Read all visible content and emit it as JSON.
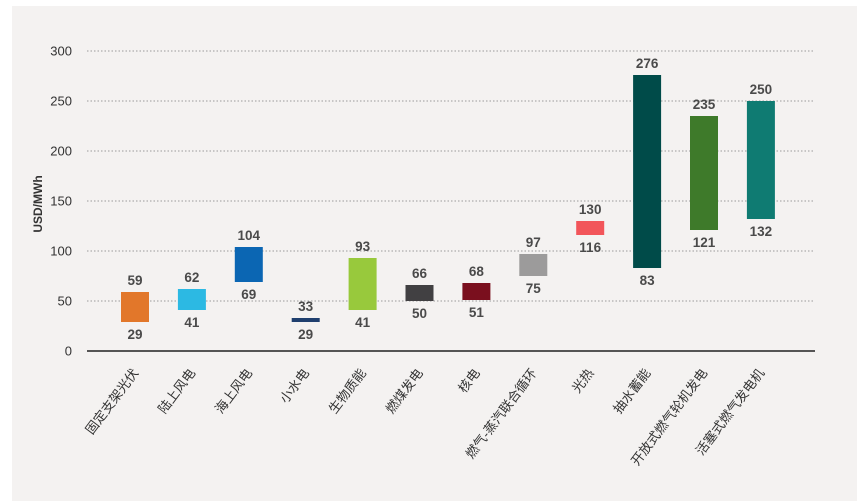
{
  "chart_data": {
    "type": "bar",
    "title": "",
    "ylabel": "USD/MWh",
    "xlabel": "",
    "ylim": [
      0,
      300
    ],
    "yticks": [
      0,
      50,
      100,
      150,
      200,
      250,
      300
    ],
    "grid": true,
    "categories": [
      "固定支架光伏",
      "陆上风电",
      "海上风电",
      "小水电",
      "生物质能",
      "燃煤发电",
      "核电",
      "燃气-蒸汽联合循环",
      "光热",
      "抽水蓄能",
      "开放式燃气轮机发电",
      "活塞式燃气发电机"
    ],
    "low": [
      29,
      41,
      69,
      29,
      41,
      50,
      51,
      75,
      116,
      83,
      121,
      132
    ],
    "high": [
      59,
      62,
      104,
      33,
      93,
      66,
      68,
      97,
      130,
      276,
      235,
      250
    ],
    "colors": [
      "#e2772a",
      "#2cb9e3",
      "#0b66b3",
      "#1f3f6e",
      "#98c93c",
      "#414042",
      "#7a0f1e",
      "#9c9b9b",
      "#f2555a",
      "#004b49",
      "#3e7a2a",
      "#0f7b72"
    ]
  }
}
